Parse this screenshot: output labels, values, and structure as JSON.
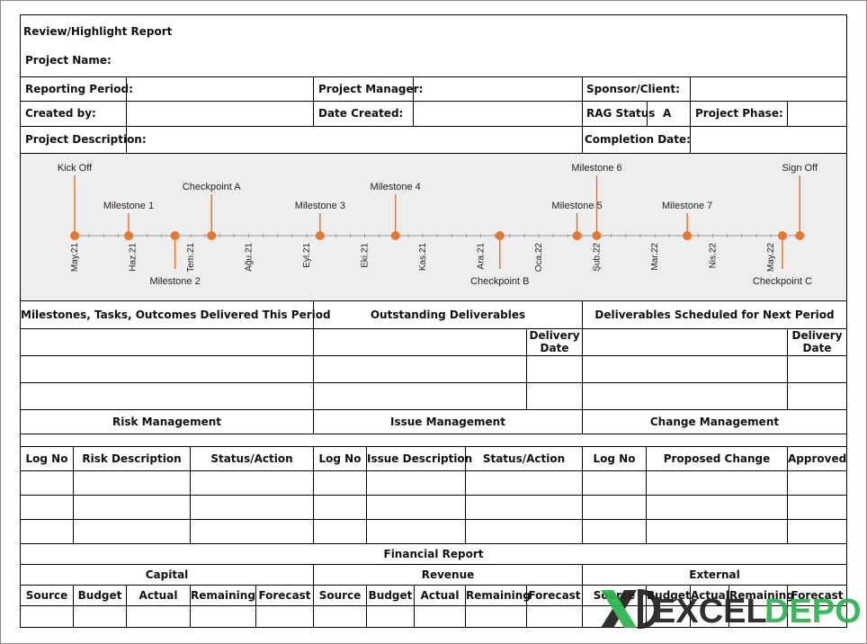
{
  "header": {
    "title": "Review/Highlight Report",
    "project_name_label": "Project Name:"
  },
  "info": {
    "reporting_period": "Reporting Period:",
    "project_manager": "Project Manager:",
    "sponsor": "Sponsor/Client:",
    "created_by": "Created by:",
    "date_created": "Date Created:",
    "rag_status": "RAG Status",
    "rag_value": "A",
    "project_phase": "Project Phase:",
    "project_description": "Project Description:",
    "completion_date": "Completion Date:"
  },
  "timeline": {
    "accent": "#E8772E",
    "axis_color": "#999999",
    "months": [
      "May.21",
      "Haz.21",
      "Tem.21",
      "Ağu.21",
      "Eyl.21",
      "Eki.21",
      "Kas.21",
      "Ara.21",
      "Oca.22",
      "Şub.22",
      "Mar.22",
      "Nis.22",
      "May.22"
    ],
    "events": [
      {
        "label": "Kick Off",
        "pos": 0.0,
        "side": "up",
        "level": 3
      },
      {
        "label": "Milestone 1",
        "pos": 0.93,
        "side": "up",
        "level": 1
      },
      {
        "label": "Milestone 2",
        "pos": 1.73,
        "side": "down",
        "level": 1
      },
      {
        "label": "Checkpoint A",
        "pos": 2.36,
        "side": "up",
        "level": 2
      },
      {
        "label": "Milestone 3",
        "pos": 4.23,
        "side": "up",
        "level": 1
      },
      {
        "label": "Milestone 4",
        "pos": 5.53,
        "side": "up",
        "level": 2
      },
      {
        "label": "Checkpoint B",
        "pos": 7.33,
        "side": "down",
        "level": 1
      },
      {
        "label": "Milestone 5",
        "pos": 8.66,
        "side": "up",
        "level": 1
      },
      {
        "label": "Milestone 6",
        "pos": 9.0,
        "side": "up",
        "level": 3
      },
      {
        "label": "Milestone 7",
        "pos": 10.56,
        "side": "up",
        "level": 1
      },
      {
        "label": "Checkpoint C",
        "pos": 12.2,
        "side": "down",
        "level": 1
      },
      {
        "label": "Sign Off",
        "pos": 12.5,
        "side": "up",
        "level": 3
      }
    ]
  },
  "sections": {
    "delivered": "Milestones, Tasks, Outcomes Delivered This Period",
    "outstanding": "Outstanding Deliverables",
    "next_period": "Deliverables Scheduled for Next Period",
    "delivery_date_1": "Delivery",
    "delivery_date_2": "Date",
    "delivery_date_3": "Delivery",
    "delivery_date_4": "Date",
    "risk": "Risk Management",
    "issue": "Issue Management",
    "change": "Change Management"
  },
  "risk_cols": [
    "Log No",
    "Risk Description",
    "Status/Action"
  ],
  "issue_cols": [
    "Log No",
    "Issue Description",
    "Status/Action"
  ],
  "change_cols": [
    "Log No",
    "Proposed Change",
    "Approved"
  ],
  "financial": {
    "title": "Financial Report",
    "capital": "Capital",
    "revenue": "Revenue",
    "external": "External",
    "cols": [
      "Source",
      "Budget",
      "Actual",
      "Remaining",
      "Forecast"
    ]
  },
  "logo": {
    "text_left": "EXCEL",
    "text_right": "DEPO",
    "color_dark": "#1f1f1f",
    "color_green": "#2bb24c"
  }
}
